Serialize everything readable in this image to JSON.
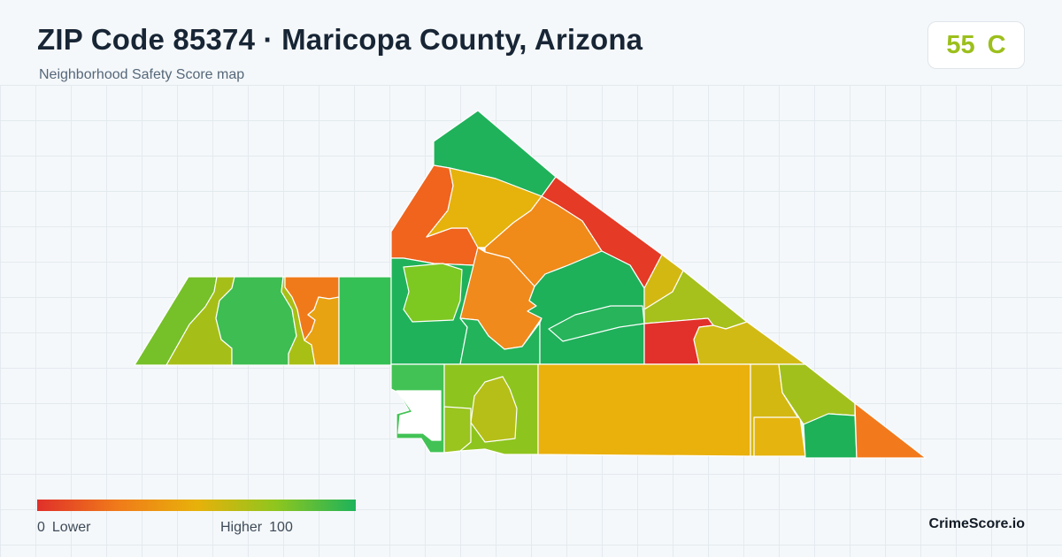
{
  "header": {
    "title": "ZIP Code 85374 · Maricopa County, Arizona",
    "subtitle": "Neighborhood Safety Score map"
  },
  "score_card": {
    "score": "55",
    "grade": "C",
    "color": "#9cbf1c"
  },
  "legend": {
    "low_value": "0",
    "low_label": "Lower",
    "high_label": "Higher",
    "high_value": "100",
    "colors": [
      "#e0302a",
      "#f07a1a",
      "#e8b10a",
      "#8ec61e",
      "#1eb35a"
    ]
  },
  "brand": "CrimeScore.io"
}
